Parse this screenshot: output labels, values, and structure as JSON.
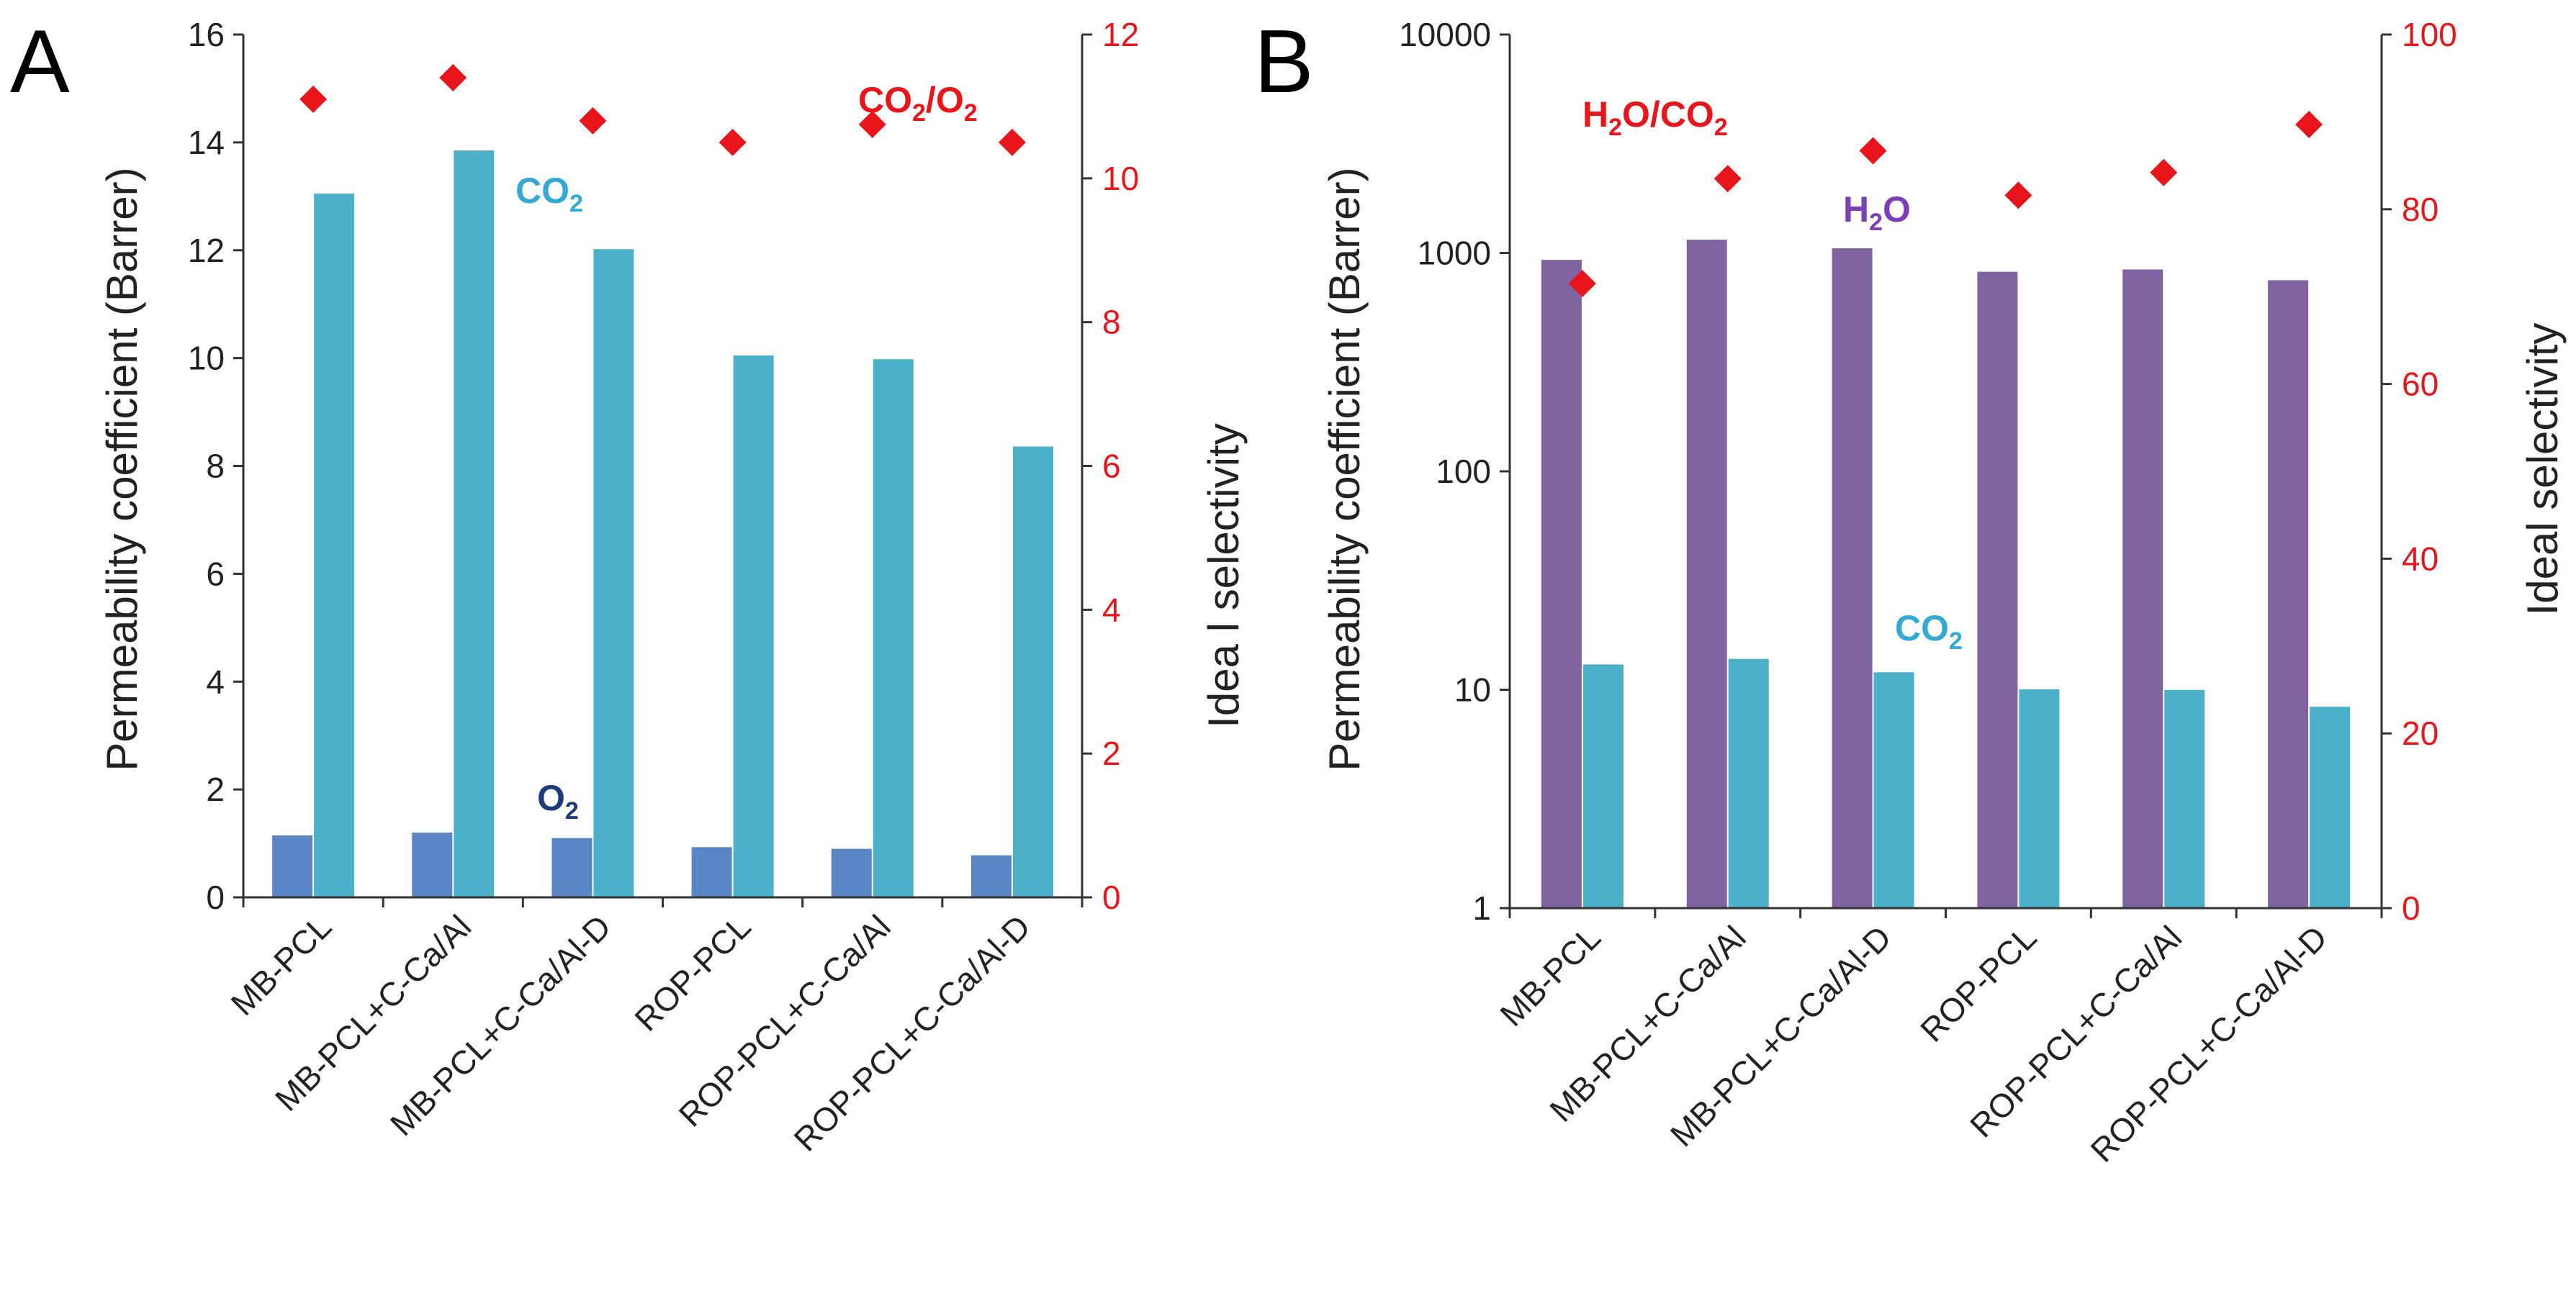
{
  "colors": {
    "o2": "#5b86c6",
    "co2": "#4cb0c8",
    "h2o": "#8064a2",
    "selectivity": "#e8151b",
    "axis": "#333333",
    "co2_label": "#33a9d4",
    "o2_label": "#1f3a78",
    "h2o_label": "#7b3fb8"
  },
  "categories": [
    "MB-PCL",
    "MB-PCL+C-Ca/Al",
    "MB-PCL+C-Ca/Al-D",
    "ROP-PCL",
    "ROP-PCL+C-Ca/Al",
    "ROP-PCL+C-Ca/Al-D"
  ],
  "chart_data": [
    {
      "panel": "A",
      "type": "bar",
      "categories": [
        "MB-PCL",
        "MB-PCL+C-Ca/Al",
        "MB-PCL+C-Ca/Al-D",
        "ROP-PCL",
        "ROP-PCL+C-Ca/Al",
        "ROP-PCL+C-Ca/Al-D"
      ],
      "series": [
        {
          "name": "O2",
          "axis": "left",
          "kind": "bar",
          "values": [
            1.15,
            1.2,
            1.1,
            0.93,
            0.9,
            0.78
          ]
        },
        {
          "name": "CO2",
          "axis": "left",
          "kind": "bar",
          "values": [
            13.05,
            13.85,
            12.02,
            10.05,
            9.98,
            8.36
          ]
        },
        {
          "name": "CO2/O2",
          "axis": "right",
          "kind": "scatter",
          "marker": "diamond",
          "values": [
            11.1,
            11.4,
            10.8,
            10.5,
            10.75,
            10.5
          ]
        }
      ],
      "ylabel": "Permeability coefficient (Barrer)",
      "ylabel_right": "Idea l selectivity",
      "ylim": [
        0,
        16
      ],
      "yticks": [
        "0",
        "2",
        "4",
        "6",
        "8",
        "10",
        "12",
        "14",
        "16"
      ],
      "ylim_right": [
        0,
        12
      ],
      "yticks_right": [
        "0",
        "2",
        "4",
        "6",
        "8",
        "10",
        "12"
      ],
      "yscale": "linear",
      "annotations": [
        {
          "base": "CO",
          "sub": "2",
          "color_key": "co2_label"
        },
        {
          "base": "O",
          "sub": "2",
          "color_key": "o2_label"
        },
        {
          "base": "CO",
          "sub": "2",
          "rest": "/O",
          "sub2": "2",
          "color_key": "selectivity"
        }
      ]
    },
    {
      "panel": "B",
      "type": "bar",
      "categories": [
        "MB-PCL",
        "MB-PCL+C-Ca/Al",
        "MB-PCL+C-Ca/Al-D",
        "ROP-PCL",
        "ROP-PCL+C-Ca/Al",
        "ROP-PCL+C-Ca/Al-D"
      ],
      "series": [
        {
          "name": "H2O",
          "axis": "left",
          "kind": "bar",
          "values": [
            930,
            1150,
            1050,
            820,
            840,
            750
          ]
        },
        {
          "name": "CO2",
          "axis": "left",
          "kind": "bar",
          "values": [
            13.05,
            13.85,
            12.02,
            10.05,
            9.98,
            8.36
          ]
        },
        {
          "name": "H2O/CO2",
          "axis": "right",
          "kind": "scatter",
          "marker": "diamond",
          "values": [
            71.5,
            83.5,
            86.7,
            81.6,
            84.2,
            89.7
          ]
        }
      ],
      "ylabel": "Permeability coefficient (Barrer)",
      "ylabel_right": "Ideal selectivity",
      "ylim": [
        1,
        10000
      ],
      "yticks": [
        "1",
        "10",
        "100",
        "1000",
        "10000"
      ],
      "ylim_right": [
        0,
        100
      ],
      "yticks_right": [
        "0",
        "20",
        "40",
        "60",
        "80",
        "100"
      ],
      "yscale": "log",
      "annotations": [
        {
          "base": "H",
          "sub": "2",
          "rest": "O/CO",
          "sub2": "2",
          "color_key": "selectivity"
        },
        {
          "base": "H",
          "sub": "2",
          "rest": "O",
          "color_key": "h2o_label"
        },
        {
          "base": "CO",
          "sub": "2",
          "color_key": "co2_label"
        }
      ]
    }
  ]
}
